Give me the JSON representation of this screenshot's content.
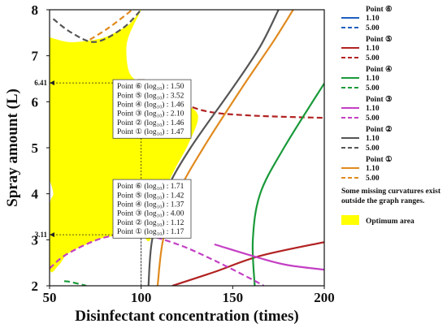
{
  "chart_data": {
    "type": "line",
    "title": "",
    "xlabel": "Disinfectant concentration (times)",
    "ylabel": "Spray amount (L)",
    "xlim": [
      50,
      200
    ],
    "ylim": [
      2,
      8
    ],
    "x_ticks": [
      "50",
      "100",
      "150",
      "200"
    ],
    "y_ticks": [
      "2",
      "3",
      "4",
      "5",
      "6",
      "7",
      "8"
    ],
    "line_styles": [
      "1.10",
      "5.00"
    ],
    "series": [
      {
        "name": "Point ⑥",
        "color": "#1f5fbf",
        "curves": {
          "1.10": [],
          "5.00": []
        }
      },
      {
        "name": "Point ⑤",
        "color": "#b22222",
        "curves": {
          "1.10": [
            [
              117,
              2
            ],
            [
              140,
              2.3
            ],
            [
              165,
              2.65
            ],
            [
              200,
              2.95
            ]
          ],
          "5.00": [
            [
              102,
              6.41
            ],
            [
              115,
              6.1
            ],
            [
              135,
              5.8
            ],
            [
              160,
              5.7
            ],
            [
              200,
              5.65
            ]
          ]
        }
      },
      {
        "name": "Point ④",
        "color": "#1a9a3a",
        "curves": {
          "1.10": [
            [
              162,
              2
            ],
            [
              161,
              3
            ],
            [
              165,
              4
            ],
            [
              178,
              5
            ],
            [
              200,
              6.4
            ]
          ],
          "5.00": [
            [
              58,
              2.1
            ],
            [
              62,
              2.08
            ],
            [
              70,
              2.0
            ]
          ]
        }
      },
      {
        "name": "Point ③",
        "color": "#c43fc4",
        "curves": {
          "1.10": [
            [
              140,
              2.9
            ],
            [
              165,
              2.6
            ],
            [
              180,
              2.45
            ],
            [
              200,
              2.35
            ]
          ],
          "5.00": [
            [
              50,
              2.38
            ],
            [
              60,
              2.7
            ],
            [
              80,
              3.05
            ],
            [
              100,
              3.11
            ],
            [
              120,
              2.9
            ],
            [
              140,
              2.55
            ],
            [
              160,
              2.15
            ],
            [
              167,
              2.0
            ]
          ]
        }
      },
      {
        "name": "Point ②",
        "color": "#555555",
        "curves": {
          "1.10": [
            [
              104,
              2
            ],
            [
              106,
              3
            ],
            [
              113,
              4
            ],
            [
              127,
              5
            ],
            [
              150,
              6.3
            ],
            [
              165,
              7.2
            ],
            [
              175,
              8
            ]
          ],
          "5.00": [
            [
              52,
              7.8
            ],
            [
              62,
              7.5
            ],
            [
              75,
              7.3
            ],
            [
              90,
              7.6
            ],
            [
              100,
              8
            ]
          ]
        }
      },
      {
        "name": "Point ①",
        "color": "#e08a1e",
        "curves": {
          "1.10": [
            [
              109,
              2
            ],
            [
              112,
              3
            ],
            [
              120,
              4
            ],
            [
              134,
              5
            ],
            [
              155,
              6.3
            ],
            [
              172,
              7.3
            ],
            [
              183,
              8
            ]
          ],
          "5.00": [
            [
              72,
              7.35
            ],
            [
              82,
              7.6
            ],
            [
              92,
              7.9
            ],
            [
              95,
              8
            ]
          ]
        }
      }
    ],
    "optimum_area": {
      "label": "Optimum area",
      "color": "#ffff00",
      "boundary": [
        [
          50,
          7.4
        ],
        [
          60,
          7.3
        ],
        [
          70,
          7.32
        ],
        [
          80,
          7.4
        ],
        [
          88,
          7.55
        ],
        [
          94,
          7.7
        ],
        [
          98,
          7.9
        ],
        [
          100,
          8
        ],
        [
          93,
          7.4
        ],
        [
          92,
          7.0
        ],
        [
          94,
          6.6
        ],
        [
          100,
          6.41
        ],
        [
          110,
          6.3
        ],
        [
          122,
          6.0
        ],
        [
          131,
          5.7
        ],
        [
          126,
          5.1
        ],
        [
          118,
          4.5
        ],
        [
          110,
          3.8
        ],
        [
          105,
          3.0
        ],
        [
          100,
          3.11
        ],
        [
          90,
          3.09
        ],
        [
          80,
          3.05
        ],
        [
          70,
          2.9
        ],
        [
          60,
          2.7
        ],
        [
          55,
          2.45
        ],
        [
          50,
          2.38
        ],
        [
          50,
          3.7
        ],
        [
          52,
          4.0
        ],
        [
          50,
          4.3
        ]
      ]
    },
    "highlighted_points": [
      {
        "x": 100,
        "y": 6.41,
        "y_label": "6.41"
      },
      {
        "x": 100,
        "y": 3.11,
        "y_label": "3.11"
      }
    ],
    "annotation_boxes": [
      {
        "lines": [
          "Point ⑥ (log₁₀) : 1.50",
          "Point ⑤ (log₁₀) : 3.52",
          "Point ④ (log₁₀) : 1.46",
          "Point ③ (log₁₀) : 2.10",
          "Point ② (log₁₀) : 1.46",
          "Point ① (log₁₀) : 1.47"
        ]
      },
      {
        "lines": [
          "Point ⑥ (log₁₀) : 1.71",
          "Point ⑤ (log₁₀) : 1.42",
          "Point ④ (log₁₀) : 1.37",
          "Point ③ (log₁₀) : 4.00",
          "Point ② (log₁₀) : 1.12",
          "Point ① (log₁₀) : 1.17"
        ]
      }
    ],
    "legend_note": [
      "Some missing curvatures exist",
      "outside the graph ranges."
    ],
    "legend_placement": "right",
    "grid": false
  }
}
